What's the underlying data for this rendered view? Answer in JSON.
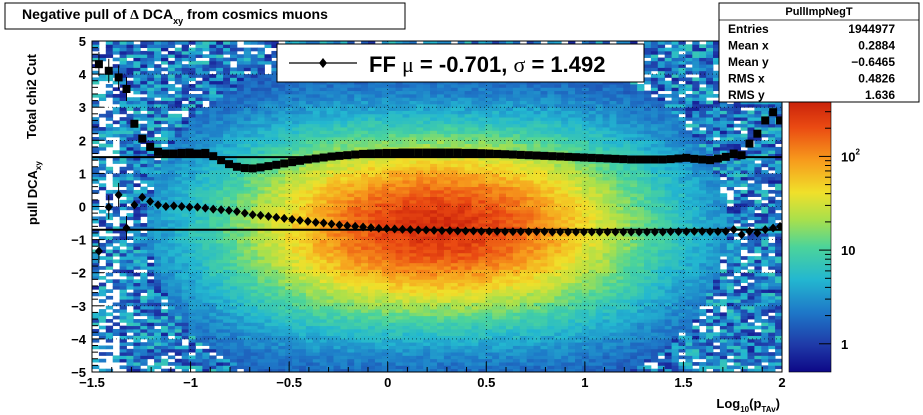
{
  "title": {
    "prefix": "Negative pull of ",
    "delta": "Δ",
    "main": " DCA",
    "sub": "xy",
    "suffix": "  from cosmics muons"
  },
  "stats": {
    "name": "PullImpNegT",
    "rows": [
      {
        "label": "Entries",
        "value": "1944977"
      },
      {
        "label": "Mean x",
        "value": "0.2884"
      },
      {
        "label": "Mean y",
        "value": "−0.6465"
      },
      {
        "label": "RMS x",
        "value": "0.4826"
      },
      {
        "label": "RMS y",
        "value": "1.636"
      }
    ]
  },
  "legend": {
    "prefix": "FF ",
    "mu": "μ",
    "mid": " = -0.701, ",
    "sigma": "σ",
    "suffix": " =   1.492"
  },
  "colorbar": {
    "labels": [
      {
        "base": "10",
        "exp": "2",
        "value": 100
      },
      {
        "base": "10",
        "exp": "",
        "value": 10
      },
      {
        "base": "1",
        "exp": "",
        "value": 1
      }
    ]
  },
  "chart_data": {
    "type": "heatmap",
    "xlabel": {
      "main": "Log",
      "sub1": "10",
      "mid": "(p",
      "sub2": "TAv",
      "end": ")"
    },
    "ylabel": {
      "line1": "Total chi2 Cut",
      "line2_main": "pull DCA",
      "line2_sub": "xy"
    },
    "xlim": [
      -1.5,
      2.0
    ],
    "ylim": [
      -5,
      5
    ],
    "x_ticks": [
      "−1.5",
      "−1",
      "−0.5",
      "0",
      "0.5",
      "1",
      "1.5",
      "2"
    ],
    "y_ticks": [
      "−5",
      "−4",
      "−3",
      "−2",
      "−1",
      "0",
      "1",
      "2",
      "3",
      "4",
      "5"
    ],
    "z_log": true,
    "fit_lines": [
      {
        "name": "mean",
        "y": -0.701
      },
      {
        "name": "sigma",
        "y": 1.492
      }
    ],
    "series": [
      {
        "name": "mean",
        "marker": "diamond",
        "x": [
          -1.465,
          -1.415,
          -1.365,
          -1.325,
          -1.285,
          -1.245,
          -1.205,
          -1.165,
          -1.125,
          -1.085,
          -1.045,
          -1.005,
          -0.965,
          -0.925,
          -0.885,
          -0.845,
          -0.805,
          -0.765,
          -0.725,
          -0.685,
          -0.645,
          -0.605,
          -0.565,
          -0.525,
          -0.485,
          -0.445,
          -0.405,
          -0.365,
          -0.325,
          -0.285,
          -0.245,
          -0.205,
          -0.165,
          -0.125,
          -0.085,
          -0.045,
          -0.005,
          0.035,
          0.075,
          0.115,
          0.155,
          0.195,
          0.235,
          0.275,
          0.315,
          0.355,
          0.395,
          0.435,
          0.475,
          0.515,
          0.555,
          0.595,
          0.635,
          0.675,
          0.715,
          0.755,
          0.795,
          0.835,
          0.875,
          0.915,
          0.955,
          0.995,
          1.035,
          1.075,
          1.115,
          1.155,
          1.195,
          1.235,
          1.275,
          1.315,
          1.355,
          1.395,
          1.435,
          1.475,
          1.515,
          1.555,
          1.595,
          1.635,
          1.675,
          1.715,
          1.755,
          1.795,
          1.835,
          1.875,
          1.915,
          1.955,
          1.99
        ],
        "y": [
          -1.35,
          -0.02,
          0.35,
          -0.65,
          0.05,
          0.28,
          0.15,
          0.05,
          0.0,
          0.02,
          0.0,
          -0.02,
          -0.02,
          -0.05,
          -0.08,
          -0.1,
          -0.12,
          -0.15,
          -0.2,
          -0.25,
          -0.27,
          -0.3,
          -0.33,
          -0.36,
          -0.39,
          -0.42,
          -0.45,
          -0.48,
          -0.5,
          -0.53,
          -0.56,
          -0.58,
          -0.6,
          -0.62,
          -0.64,
          -0.66,
          -0.67,
          -0.68,
          -0.69,
          -0.7,
          -0.71,
          -0.71,
          -0.72,
          -0.73,
          -0.73,
          -0.74,
          -0.74,
          -0.74,
          -0.75,
          -0.75,
          -0.75,
          -0.76,
          -0.76,
          -0.76,
          -0.76,
          -0.76,
          -0.76,
          -0.77,
          -0.77,
          -0.77,
          -0.77,
          -0.77,
          -0.77,
          -0.77,
          -0.77,
          -0.77,
          -0.77,
          -0.77,
          -0.77,
          -0.77,
          -0.77,
          -0.77,
          -0.76,
          -0.76,
          -0.76,
          -0.75,
          -0.75,
          -0.76,
          -0.76,
          -0.75,
          -0.7,
          -0.85,
          -0.75,
          -0.8,
          -0.7,
          -0.65,
          -0.6
        ]
      },
      {
        "name": "sigma",
        "marker": "square",
        "x": [
          -1.465,
          -1.415,
          -1.365,
          -1.325,
          -1.285,
          -1.245,
          -1.205,
          -1.165,
          -1.125,
          -1.085,
          -1.045,
          -1.005,
          -0.965,
          -0.925,
          -0.885,
          -0.845,
          -0.805,
          -0.765,
          -0.725,
          -0.685,
          -0.645,
          -0.605,
          -0.565,
          -0.525,
          -0.485,
          -0.445,
          -0.405,
          -0.365,
          -0.325,
          -0.285,
          -0.245,
          -0.205,
          -0.165,
          -0.125,
          -0.085,
          -0.045,
          -0.005,
          0.035,
          0.075,
          0.115,
          0.155,
          0.195,
          0.235,
          0.275,
          0.315,
          0.355,
          0.395,
          0.435,
          0.475,
          0.515,
          0.555,
          0.595,
          0.635,
          0.675,
          0.715,
          0.755,
          0.795,
          0.835,
          0.875,
          0.915,
          0.955,
          0.995,
          1.035,
          1.075,
          1.115,
          1.155,
          1.195,
          1.235,
          1.275,
          1.315,
          1.355,
          1.395,
          1.435,
          1.475,
          1.515,
          1.555,
          1.595,
          1.635,
          1.675,
          1.715,
          1.755,
          1.795,
          1.835,
          1.875,
          1.915,
          1.955,
          1.99
        ],
        "y": [
          4.3,
          4.1,
          3.9,
          3.55,
          2.5,
          2.05,
          1.8,
          1.65,
          1.6,
          1.6,
          1.62,
          1.63,
          1.6,
          1.62,
          1.52,
          1.4,
          1.28,
          1.2,
          1.16,
          1.15,
          1.18,
          1.22,
          1.26,
          1.3,
          1.34,
          1.38,
          1.42,
          1.45,
          1.48,
          1.51,
          1.53,
          1.55,
          1.57,
          1.59,
          1.6,
          1.61,
          1.62,
          1.62,
          1.63,
          1.63,
          1.63,
          1.63,
          1.63,
          1.63,
          1.63,
          1.63,
          1.62,
          1.62,
          1.61,
          1.6,
          1.59,
          1.58,
          1.57,
          1.56,
          1.55,
          1.54,
          1.53,
          1.52,
          1.51,
          1.5,
          1.49,
          1.48,
          1.47,
          1.46,
          1.45,
          1.44,
          1.43,
          1.42,
          1.42,
          1.42,
          1.42,
          1.42,
          1.43,
          1.45,
          1.47,
          1.44,
          1.42,
          1.4,
          1.45,
          1.5,
          1.6,
          1.55,
          1.9,
          2.2,
          2.6,
          2.85,
          2.6
        ]
      }
    ]
  }
}
